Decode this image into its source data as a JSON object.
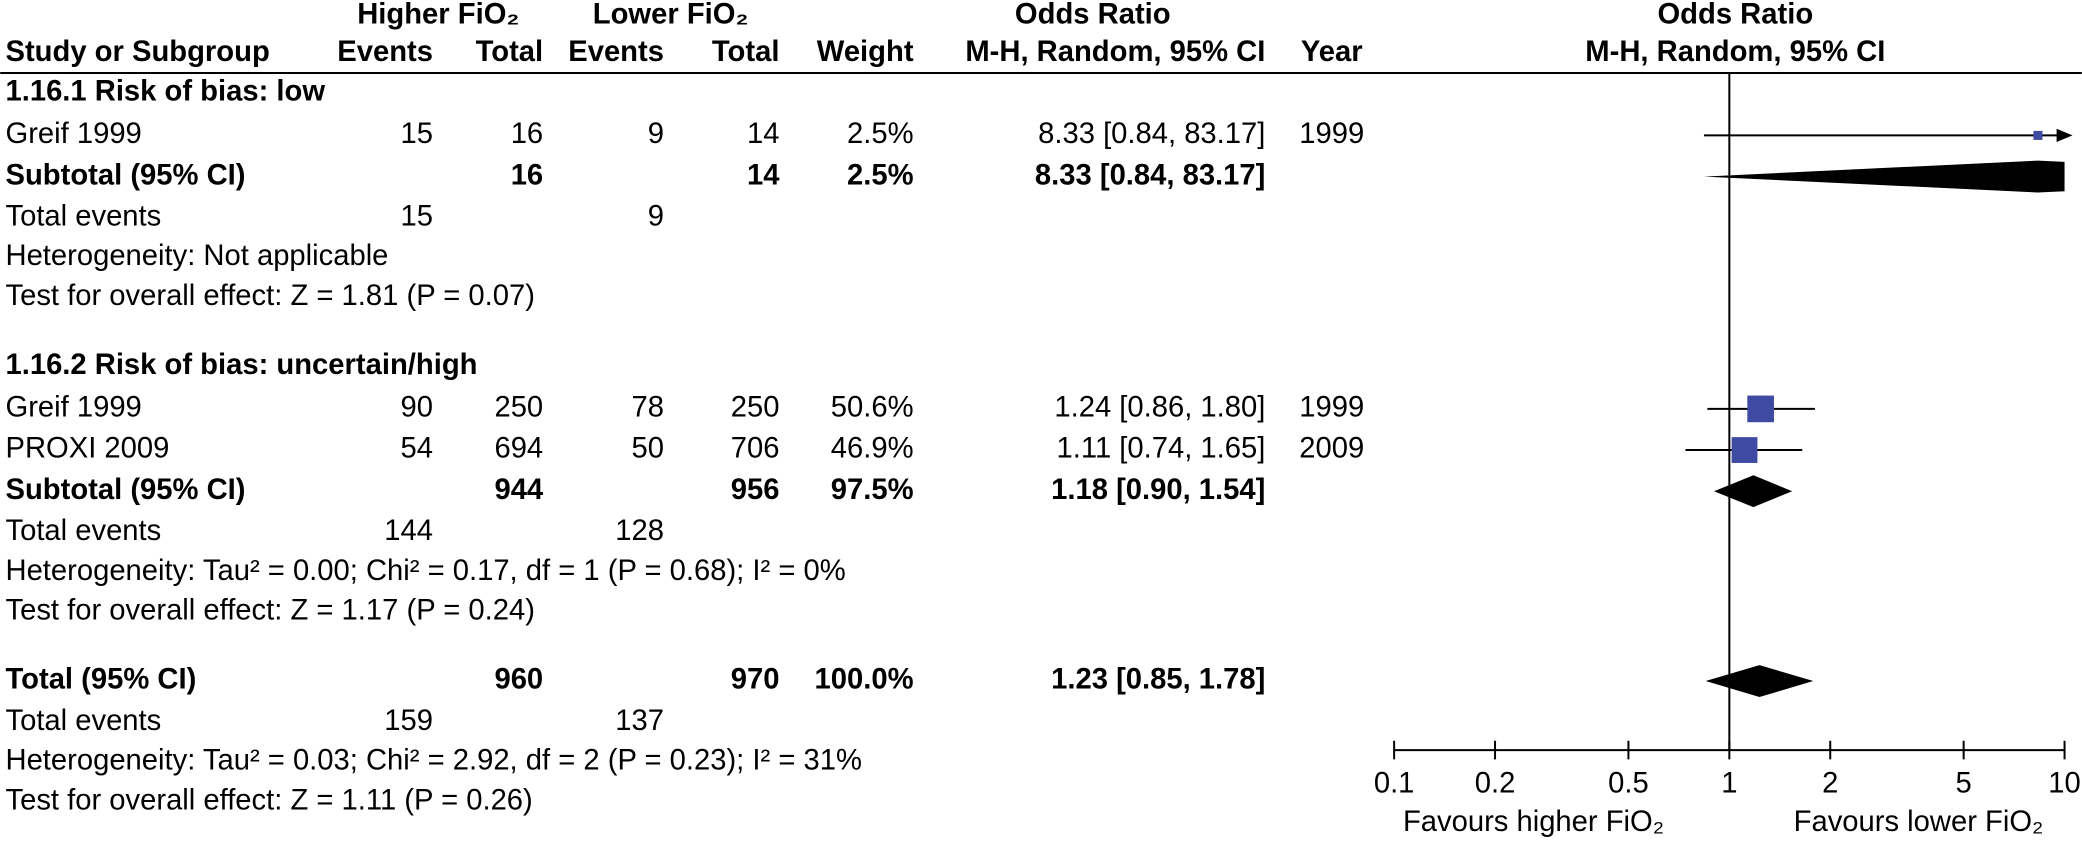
{
  "header": {
    "group_headers": [
      "Higher FiO₂",
      "Lower FiO₂",
      "Odds Ratio"
    ],
    "columns": [
      "Study or Subgroup",
      "Events",
      "Total",
      "Events",
      "Total",
      "Weight",
      "M-H, Random, 95% CI",
      "Year"
    ],
    "plot_title": "Odds Ratio",
    "plot_subtitle": "M-H, Random, 95% CI"
  },
  "chart_data": {
    "type": "forest",
    "xscale": "log",
    "xlim": [
      0.1,
      10
    ],
    "xticks": [
      0.1,
      0.2,
      0.5,
      1,
      2,
      5,
      10
    ],
    "x_labels": [
      "Favours higher FiO₂",
      "Favours lower FiO₂"
    ],
    "marker_color": "#3f4aa3",
    "diamond_color": "#000000",
    "groups": [
      {
        "title": "1.16.1 Risk of bias: low",
        "studies": [
          {
            "study": "Greif 1999",
            "higher_events": 15,
            "higher_total": 16,
            "lower_events": 9,
            "lower_total": 14,
            "weight": 2.5,
            "weight_label": "2.5%",
            "or": 8.33,
            "ci_low": 0.84,
            "ci_high": 83.17,
            "or_label": "8.33 [0.84, 83.17]",
            "year": 1999
          }
        ],
        "subtotal": {
          "label": "Subtotal (95% CI)",
          "higher_total": 16,
          "lower_total": 14,
          "weight": "2.5%",
          "or": 8.33,
          "ci_low": 0.84,
          "ci_high": 83.17,
          "or_label": "8.33 [0.84, 83.17]"
        },
        "total_events": {
          "label": "Total events",
          "higher": 15,
          "lower": 9
        },
        "heterogeneity": "Heterogeneity: Not applicable",
        "overall_effect": "Test for overall effect: Z = 1.81 (P = 0.07)"
      },
      {
        "title": "1.16.2 Risk of bias: uncertain/high",
        "studies": [
          {
            "study": "Greif 1999",
            "higher_events": 90,
            "higher_total": 250,
            "lower_events": 78,
            "lower_total": 250,
            "weight": 50.6,
            "weight_label": "50.6%",
            "or": 1.24,
            "ci_low": 0.86,
            "ci_high": 1.8,
            "or_label": "1.24 [0.86, 1.80]",
            "year": 1999
          },
          {
            "study": "PROXI 2009",
            "higher_events": 54,
            "higher_total": 694,
            "lower_events": 50,
            "lower_total": 706,
            "weight": 46.9,
            "weight_label": "46.9%",
            "or": 1.11,
            "ci_low": 0.74,
            "ci_high": 1.65,
            "or_label": "1.11 [0.74, 1.65]",
            "year": 2009
          }
        ],
        "subtotal": {
          "label": "Subtotal (95% CI)",
          "higher_total": 944,
          "lower_total": 956,
          "weight": "97.5%",
          "or": 1.18,
          "ci_low": 0.9,
          "ci_high": 1.54,
          "or_label": "1.18 [0.90, 1.54]"
        },
        "total_events": {
          "label": "Total events",
          "higher": 144,
          "lower": 128
        },
        "heterogeneity": "Heterogeneity: Tau² = 0.00; Chi² = 0.17, df = 1 (P = 0.68); I² = 0%",
        "overall_effect": "Test for overall effect: Z = 1.17 (P = 0.24)"
      }
    ],
    "overall": {
      "summary": {
        "label": "Total (95% CI)",
        "higher_total": 960,
        "lower_total": 970,
        "weight": "100.0%",
        "or": 1.23,
        "ci_low": 0.85,
        "ci_high": 1.78,
        "or_label": "1.23 [0.85, 1.78]"
      },
      "total_events": {
        "label": "Total events",
        "higher": 159,
        "lower": 137
      },
      "heterogeneity": "Heterogeneity: Tau² = 0.03; Chi² = 2.92, df = 2 (P = 0.23); I² = 31%",
      "overall_effect": "Test for overall effect: Z = 1.11 (P = 0.26)"
    }
  }
}
